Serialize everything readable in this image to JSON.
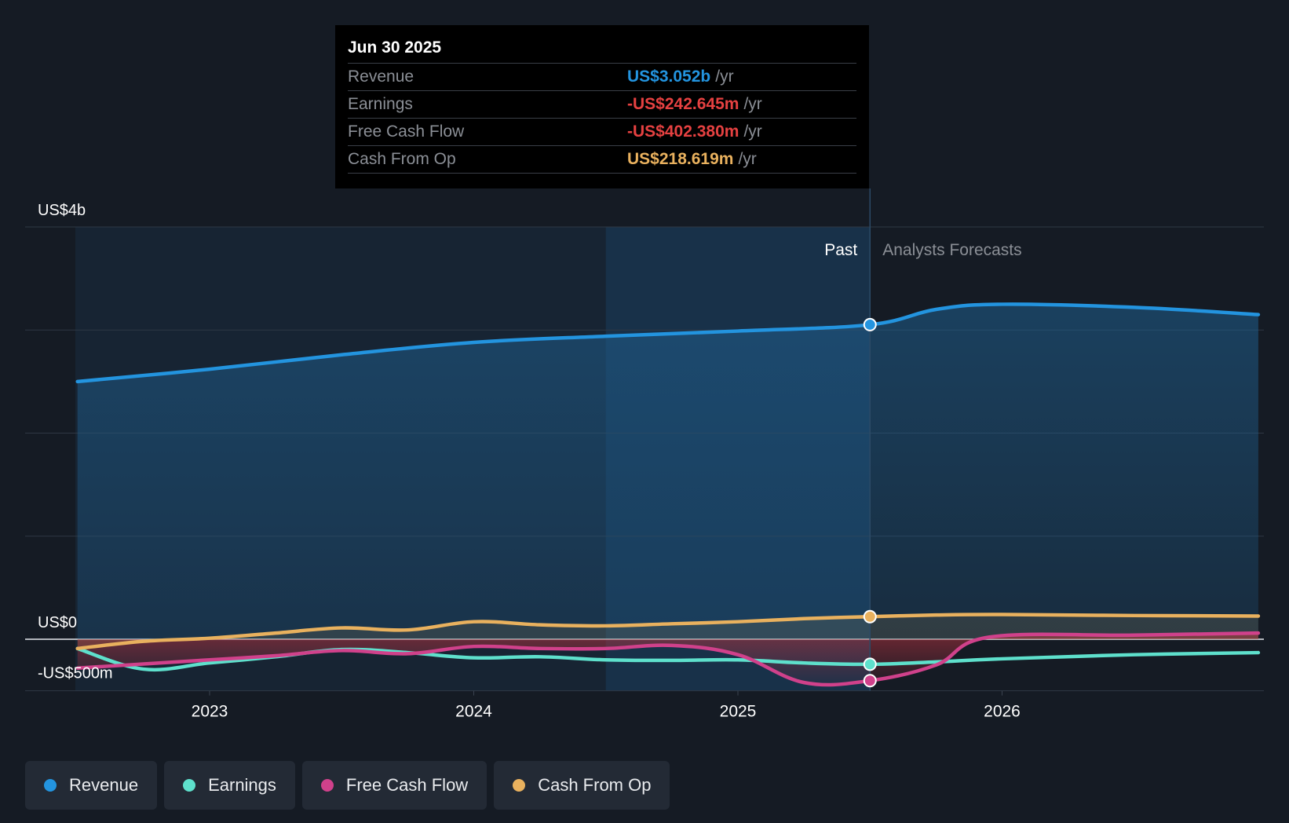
{
  "tooltip": {
    "date": "Jun 30 2025",
    "rows": [
      {
        "label": "Revenue",
        "value": "US$3.052b",
        "unit": "/yr",
        "color": "#2394df"
      },
      {
        "label": "Earnings",
        "value": "-US$242.645m",
        "unit": "/yr",
        "color": "#e64141"
      },
      {
        "label": "Free Cash Flow",
        "value": "-US$402.380m",
        "unit": "/yr",
        "color": "#e64141"
      },
      {
        "label": "Cash From Op",
        "value": "US$218.619m",
        "unit": "/yr",
        "color": "#e9b15e"
      }
    ]
  },
  "legend": [
    {
      "label": "Revenue",
      "color": "#2394df"
    },
    {
      "label": "Earnings",
      "color": "#5ee0cc"
    },
    {
      "label": "Free Cash Flow",
      "color": "#d0418b"
    },
    {
      "label": "Cash From Op",
      "color": "#e9b15e"
    }
  ],
  "chart_data": {
    "type": "line",
    "y_unit": "US$ millions",
    "ylim": [
      -500,
      4000
    ],
    "xlim": [
      2022.42,
      2026.97
    ],
    "y_tick_labels": [
      {
        "value": 4000,
        "label": "US$4b"
      },
      {
        "value": 0,
        "label": "US$0"
      },
      {
        "value": -500,
        "label": "-US$500m"
      }
    ],
    "x_ticks": [
      {
        "value": 2023,
        "label": "2023"
      },
      {
        "value": 2024,
        "label": "2024"
      },
      {
        "value": 2025,
        "label": "2025"
      },
      {
        "value": 2026,
        "label": "2026"
      }
    ],
    "past_label": "Past",
    "forecast_label": "Analysts Forecasts",
    "divider_x": 2025.5,
    "highlight_start_x": 2024.5,
    "grid": true,
    "series": [
      {
        "name": "Revenue",
        "color": "#2394df",
        "points": [
          [
            2022.5,
            2500
          ],
          [
            2023.0,
            2620
          ],
          [
            2023.5,
            2760
          ],
          [
            2024.0,
            2880
          ],
          [
            2024.5,
            2940
          ],
          [
            2025.0,
            2990
          ],
          [
            2025.5,
            3052
          ],
          [
            2025.75,
            3200
          ],
          [
            2026.0,
            3250
          ],
          [
            2026.5,
            3220
          ],
          [
            2026.97,
            3150
          ]
        ]
      },
      {
        "name": "Earnings",
        "color": "#5ee0cc",
        "points": [
          [
            2022.5,
            -90
          ],
          [
            2022.75,
            -290
          ],
          [
            2023.0,
            -230
          ],
          [
            2023.25,
            -170
          ],
          [
            2023.5,
            -100
          ],
          [
            2023.75,
            -130
          ],
          [
            2024.0,
            -180
          ],
          [
            2024.25,
            -170
          ],
          [
            2024.5,
            -200
          ],
          [
            2024.75,
            -205
          ],
          [
            2025.0,
            -200
          ],
          [
            2025.25,
            -230
          ],
          [
            2025.5,
            -243
          ],
          [
            2025.75,
            -220
          ],
          [
            2026.0,
            -190
          ],
          [
            2026.5,
            -150
          ],
          [
            2026.97,
            -130
          ]
        ]
      },
      {
        "name": "Free Cash Flow",
        "color": "#d0418b",
        "points": [
          [
            2022.5,
            -280
          ],
          [
            2022.75,
            -240
          ],
          [
            2023.0,
            -200
          ],
          [
            2023.25,
            -160
          ],
          [
            2023.5,
            -110
          ],
          [
            2023.75,
            -140
          ],
          [
            2024.0,
            -70
          ],
          [
            2024.25,
            -90
          ],
          [
            2024.5,
            -90
          ],
          [
            2024.75,
            -60
          ],
          [
            2025.0,
            -150
          ],
          [
            2025.25,
            -420
          ],
          [
            2025.5,
            -402
          ],
          [
            2025.75,
            -250
          ],
          [
            2025.95,
            20
          ],
          [
            2026.5,
            40
          ],
          [
            2026.97,
            60
          ]
        ]
      },
      {
        "name": "Cash From Op",
        "color": "#e9b15e",
        "points": [
          [
            2022.5,
            -90
          ],
          [
            2022.75,
            -20
          ],
          [
            2023.0,
            10
          ],
          [
            2023.25,
            60
          ],
          [
            2023.5,
            110
          ],
          [
            2023.75,
            90
          ],
          [
            2024.0,
            170
          ],
          [
            2024.25,
            140
          ],
          [
            2024.5,
            130
          ],
          [
            2024.75,
            150
          ],
          [
            2025.0,
            170
          ],
          [
            2025.25,
            200
          ],
          [
            2025.5,
            219
          ],
          [
            2025.75,
            235
          ],
          [
            2026.0,
            240
          ],
          [
            2026.5,
            230
          ],
          [
            2026.97,
            225
          ]
        ]
      }
    ]
  }
}
